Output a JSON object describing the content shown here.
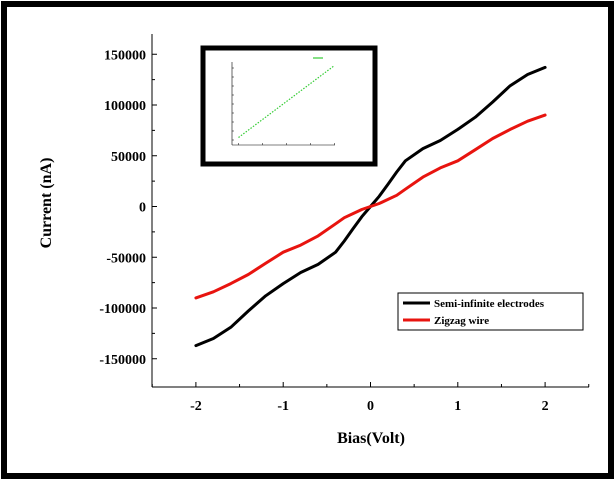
{
  "chart_data": [
    {
      "type": "line",
      "title": "",
      "xlabel": "Bias(Volt)",
      "ylabel": "Current (nA)",
      "xlim": [
        -2.5,
        2.5
      ],
      "ylim": [
        -170000,
        160000
      ],
      "xticks": [
        -2,
        -1,
        0,
        1,
        2
      ],
      "yticks": [
        -150000,
        -100000,
        -50000,
        0,
        50000,
        100000,
        150000
      ],
      "xtick_labels": [
        "-2",
        "-1",
        "0",
        "1",
        "2"
      ],
      "ytick_labels": [
        "-150000",
        "-100000",
        "-50000",
        "0",
        "50000",
        "100000",
        "150000"
      ],
      "legend_position": "center-right",
      "series": [
        {
          "name": "Semi-infinite electrodes",
          "color": "#000000",
          "x": [
            -2,
            -1.8,
            -1.6,
            -1.4,
            -1.2,
            -1.0,
            -0.8,
            -0.6,
            -0.4,
            -0.3,
            -0.2,
            -0.1,
            0,
            0.1,
            0.2,
            0.3,
            0.4,
            0.6,
            0.8,
            1.0,
            1.2,
            1.4,
            1.6,
            1.8,
            2.0
          ],
          "y": [
            -137000,
            -130000,
            -119000,
            -103000,
            -88000,
            -76000,
            -65000,
            -57000,
            -45000,
            -34000,
            -22000,
            -10000,
            0,
            10000,
            22000,
            34000,
            45000,
            57000,
            65000,
            76000,
            88000,
            103000,
            119000,
            130000,
            137000
          ]
        },
        {
          "name": "Zigzag wire",
          "color": "#e8140f",
          "x": [
            -2,
            -1.8,
            -1.6,
            -1.4,
            -1.2,
            -1.0,
            -0.8,
            -0.6,
            -0.4,
            -0.3,
            -0.2,
            -0.1,
            0,
            0.1,
            0.2,
            0.3,
            0.4,
            0.6,
            0.8,
            1.0,
            1.2,
            1.4,
            1.6,
            1.8,
            2.0
          ],
          "y": [
            -90000,
            -84000,
            -76000,
            -67000,
            -56000,
            -45000,
            -38000,
            -29000,
            -17000,
            -11000,
            -7000,
            -3000,
            0,
            3000,
            7000,
            11000,
            17000,
            29000,
            38000,
            45000,
            56000,
            67000,
            76000,
            84000,
            90000
          ]
        }
      ]
    },
    {
      "type": "line",
      "title": "",
      "xlabel": "",
      "ylabel": "",
      "legend_position": "top-right",
      "series": [
        {
          "name": "",
          "color": "#33cc33",
          "x": [
            -2,
            -1.5,
            -1,
            -0.5,
            0,
            0.5,
            1,
            1.5,
            2
          ],
          "y": [
            -2,
            -1.5,
            -1,
            -0.5,
            0,
            0.5,
            1,
            1.5,
            2
          ]
        }
      ]
    }
  ]
}
